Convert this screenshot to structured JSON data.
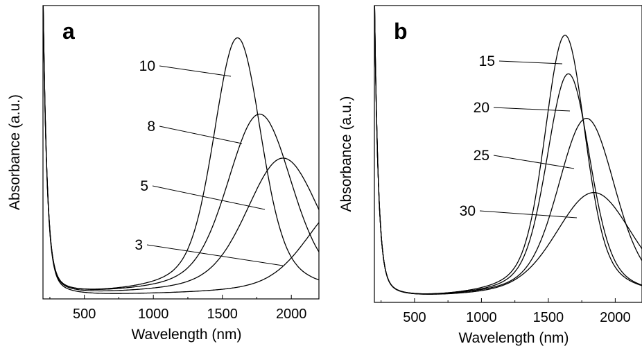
{
  "chart_data": [
    {
      "type": "line",
      "panel_label": "a",
      "xlabel": "Wavelength (nm)",
      "ylabel": "Absorbance (a.u.)",
      "xlim": [
        200,
        2200
      ],
      "ylim": [
        0,
        1.0
      ],
      "xticks": [
        500,
        1000,
        1500,
        2000
      ],
      "xtick_labels": [
        "500",
        "1000",
        "1500",
        "2000"
      ],
      "yticks": [],
      "grid": false,
      "legend": "none",
      "series": [
        {
          "label": "10",
          "peak_x": 1610,
          "peak_y": 0.88,
          "fwhm": 340
        },
        {
          "label": "8",
          "peak_x": 1770,
          "peak_y": 0.62,
          "fwhm": 460
        },
        {
          "label": "5",
          "peak_x": 1940,
          "peak_y": 0.47,
          "fwhm": 520
        },
        {
          "label": "3",
          "peak_x": 2400,
          "peak_y": 0.32,
          "fwhm": 560
        }
      ]
    },
    {
      "type": "line",
      "panel_label": "b",
      "xlabel": "Wavelength (nm)",
      "ylabel": "Absorbance (a.u.)",
      "xlim": [
        200,
        2200
      ],
      "ylim": [
        0,
        1.0
      ],
      "xticks": [
        500,
        1000,
        1500,
        2000
      ],
      "xtick_labels": [
        "500",
        "1000",
        "1500",
        "2000"
      ],
      "yticks": [],
      "grid": false,
      "legend": "none",
      "series": [
        {
          "label": "15",
          "peak_x": 1625,
          "peak_y": 0.89,
          "fwhm": 300
        },
        {
          "label": "20",
          "peak_x": 1650,
          "peak_y": 0.76,
          "fwhm": 320
        },
        {
          "label": "25",
          "peak_x": 1785,
          "peak_y": 0.61,
          "fwhm": 420
        },
        {
          "label": "30",
          "peak_x": 1840,
          "peak_y": 0.36,
          "fwhm": 560
        }
      ]
    }
  ]
}
